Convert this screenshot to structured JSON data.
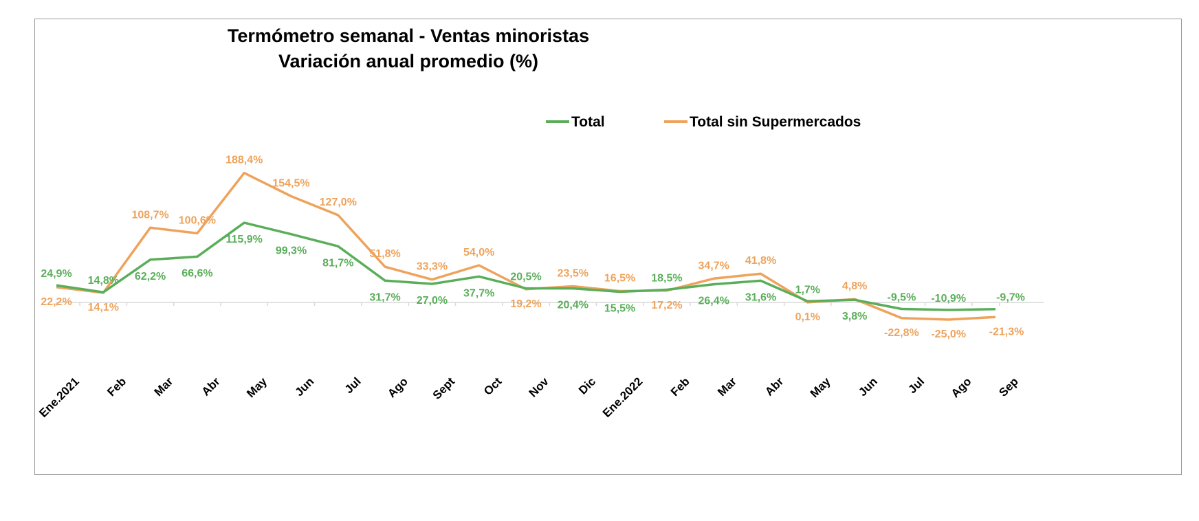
{
  "chart_data": {
    "type": "line",
    "title": [
      "Termómetro semanal - Ventas minoristas",
      "Variación anual promedio (%)"
    ],
    "categories": [
      "Ene.2021",
      "Feb",
      "Mar",
      "Abr",
      "May",
      "Jun",
      "Jul",
      "Ago",
      "Sept",
      "Oct",
      "Nov",
      "Dic",
      "Ene.2022",
      "Feb",
      "Mar",
      "Abr",
      "May",
      "Jun",
      "Jul",
      "Ago",
      "Sep"
    ],
    "series": [
      {
        "name": "Total",
        "color": "#5aae5a",
        "values": [
          24.9,
          14.8,
          62.2,
          66.6,
          115.9,
          99.3,
          81.7,
          31.7,
          27.0,
          37.7,
          20.5,
          20.4,
          15.5,
          18.5,
          26.4,
          31.6,
          1.7,
          3.8,
          -9.5,
          -10.9,
          -9.7
        ],
        "labels": [
          "24,9%",
          "14,8%",
          "62,2%",
          "66,6%",
          "115,9%",
          "99,3%",
          "81,7%",
          "31,7%",
          "27,0%",
          "37,7%",
          "20,5%",
          "20,4%",
          "15,5%",
          "18,5%",
          "26,4%",
          "31,6%",
          "1,7%",
          "3,8%",
          "-9,5%",
          "-10,9%",
          "-9,7%"
        ]
      },
      {
        "name": "Total sin Supermercados",
        "color": "#eea35c",
        "values": [
          22.2,
          14.1,
          108.7,
          100.6,
          188.4,
          154.5,
          127.0,
          51.8,
          33.3,
          54.0,
          19.2,
          23.5,
          16.5,
          17.2,
          34.7,
          41.8,
          0.1,
          4.8,
          -22.8,
          -25.0,
          -21.3
        ],
        "labels": [
          "22,2%",
          "14,1%",
          "108,7%",
          "100,6%",
          "188,4%",
          "154,5%",
          "127,0%",
          "51,8%",
          "33,3%",
          "54,0%",
          "19,2%",
          "23,5%",
          "16,5%",
          "17,2%",
          "34,7%",
          "41,8%",
          "0,1%",
          "4,8%",
          "-22,8%",
          "-25,0%",
          "-21,3%"
        ]
      }
    ],
    "legend_placement": "top-right",
    "grid": false
  }
}
